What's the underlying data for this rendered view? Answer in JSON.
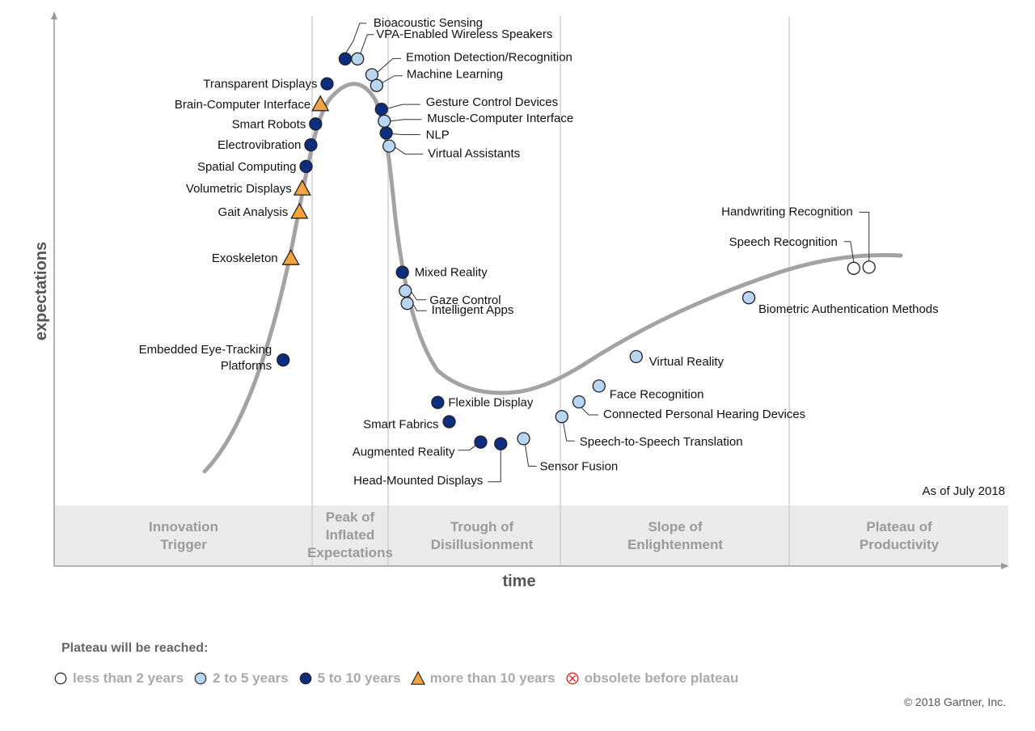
{
  "chart_data": {
    "type": "scatter",
    "x_axis_label": "time",
    "y_axis_label": "expectations",
    "as_of": "As of July 2018",
    "phases": [
      {
        "name": "Innovation Trigger",
        "lines": [
          "Innovation",
          "Trigger"
        ]
      },
      {
        "name": "Peak of Inflated Expectations",
        "lines": [
          "Peak of",
          "Inflated",
          "Expectations"
        ]
      },
      {
        "name": "Trough of Disillusionment",
        "lines": [
          "Trough of",
          "Disillusionment"
        ]
      },
      {
        "name": "Slope of Enlightenment",
        "lines": [
          "Slope of",
          "Enlightenment"
        ]
      },
      {
        "name": "Plateau of Productivity",
        "lines": [
          "Plateau of",
          "Productivity"
        ]
      }
    ],
    "series_categories": [
      {
        "key": "lt2",
        "name": "less than 2 years",
        "color": "#ffffff"
      },
      {
        "key": "2to5",
        "name": "2 to 5 years",
        "color": "#b8d6f2"
      },
      {
        "key": "5to10",
        "name": "5 to 10 years",
        "color": "#0d2d80"
      },
      {
        "key": "gt10",
        "name": "more than 10 years",
        "color": "#f4a340"
      },
      {
        "key": "obsolete",
        "name": "obsolete before plateau",
        "color": "#d93030"
      }
    ],
    "points": [
      {
        "label": "Embedded Eye-Tracking Platforms",
        "lines": [
          "Embedded Eye-Tracking",
          "Platforms"
        ],
        "category": "5to10",
        "x": 0.24,
        "y": 0.364
      },
      {
        "label": "Exoskeleton",
        "category": "gt10",
        "x": 0.248,
        "y": 0.544
      },
      {
        "label": "Gait Analysis",
        "category": "gt10",
        "x": 0.257,
        "y": 0.626
      },
      {
        "label": "Volumetric Displays",
        "category": "gt10",
        "x": 0.26,
        "y": 0.667
      },
      {
        "label": "Spatial Computing",
        "category": "5to10",
        "x": 0.264,
        "y": 0.706
      },
      {
        "label": "Electrovibration",
        "category": "5to10",
        "x": 0.269,
        "y": 0.744
      },
      {
        "label": "Smart Robots",
        "category": "5to10",
        "x": 0.274,
        "y": 0.781
      },
      {
        "label": "Brain-Computer Interface",
        "category": "gt10",
        "x": 0.279,
        "y": 0.816
      },
      {
        "label": "Transparent Displays",
        "category": "5to10",
        "x": 0.286,
        "y": 0.852
      },
      {
        "label": "Bioacoustic Sensing",
        "category": "5to10",
        "x": 0.305,
        "y": 0.896
      },
      {
        "label": "VPA-Enabled Wireless Speakers",
        "category": "2to5",
        "x": 0.318,
        "y": 0.896
      },
      {
        "label": "Emotion Detection/Recognition",
        "category": "2to5",
        "x": 0.333,
        "y": 0.868
      },
      {
        "label": "Machine Learning",
        "category": "2to5",
        "x": 0.338,
        "y": 0.849
      },
      {
        "label": "Gesture Control Devices",
        "category": "5to10",
        "x": 0.343,
        "y": 0.807
      },
      {
        "label": "Muscle-Computer Interface",
        "category": "2to5",
        "x": 0.346,
        "y": 0.786
      },
      {
        "label": "NLP",
        "category": "5to10",
        "x": 0.348,
        "y": 0.765
      },
      {
        "label": "Virtual Assistants",
        "category": "2to5",
        "x": 0.351,
        "y": 0.742
      },
      {
        "label": "Mixed Reality",
        "category": "5to10",
        "x": 0.365,
        "y": 0.519
      },
      {
        "label": "Gaze Control",
        "category": "2to5",
        "x": 0.368,
        "y": 0.486
      },
      {
        "label": "Intelligent Apps",
        "category": "2to5",
        "x": 0.37,
        "y": 0.464
      },
      {
        "label": "Flexible Display",
        "category": "5to10",
        "x": 0.402,
        "y": 0.289
      },
      {
        "label": "Smart Fabrics",
        "category": "5to10",
        "x": 0.414,
        "y": 0.255
      },
      {
        "label": "Augmented Reality",
        "category": "5to10",
        "x": 0.447,
        "y": 0.219
      },
      {
        "label": "Head-Mounted Displays",
        "category": "5to10",
        "x": 0.468,
        "y": 0.216
      },
      {
        "label": "Sensor Fusion",
        "category": "2to5",
        "x": 0.492,
        "y": 0.225
      },
      {
        "label": "Speech-to-Speech Translation",
        "category": "2to5",
        "x": 0.532,
        "y": 0.264
      },
      {
        "label": "Connected Personal Hearing Devices",
        "category": "2to5",
        "x": 0.55,
        "y": 0.29
      },
      {
        "label": "Face Recognition",
        "category": "2to5",
        "x": 0.571,
        "y": 0.318
      },
      {
        "label": "Virtual Reality",
        "category": "2to5",
        "x": 0.61,
        "y": 0.37
      },
      {
        "label": "Biometric Authentication Methods",
        "category": "2to5",
        "x": 0.728,
        "y": 0.474
      },
      {
        "label": "Speech Recognition",
        "category": "lt2",
        "x": 0.838,
        "y": 0.526
      },
      {
        "label": "Handwriting Recognition",
        "category": "lt2",
        "x": 0.854,
        "y": 0.528
      }
    ]
  },
  "legend": {
    "title": "Plateau will be reached:",
    "items": [
      {
        "key": "lt2",
        "label": "less than 2 years"
      },
      {
        "key": "2to5",
        "label": "2 to 5 years"
      },
      {
        "key": "5to10",
        "label": "5 to 10 years"
      },
      {
        "key": "gt10",
        "label": "more than 10 years"
      },
      {
        "key": "obsolete",
        "label": "obsolete before plateau"
      }
    ]
  },
  "copyright": "© 2018 Gartner, Inc."
}
